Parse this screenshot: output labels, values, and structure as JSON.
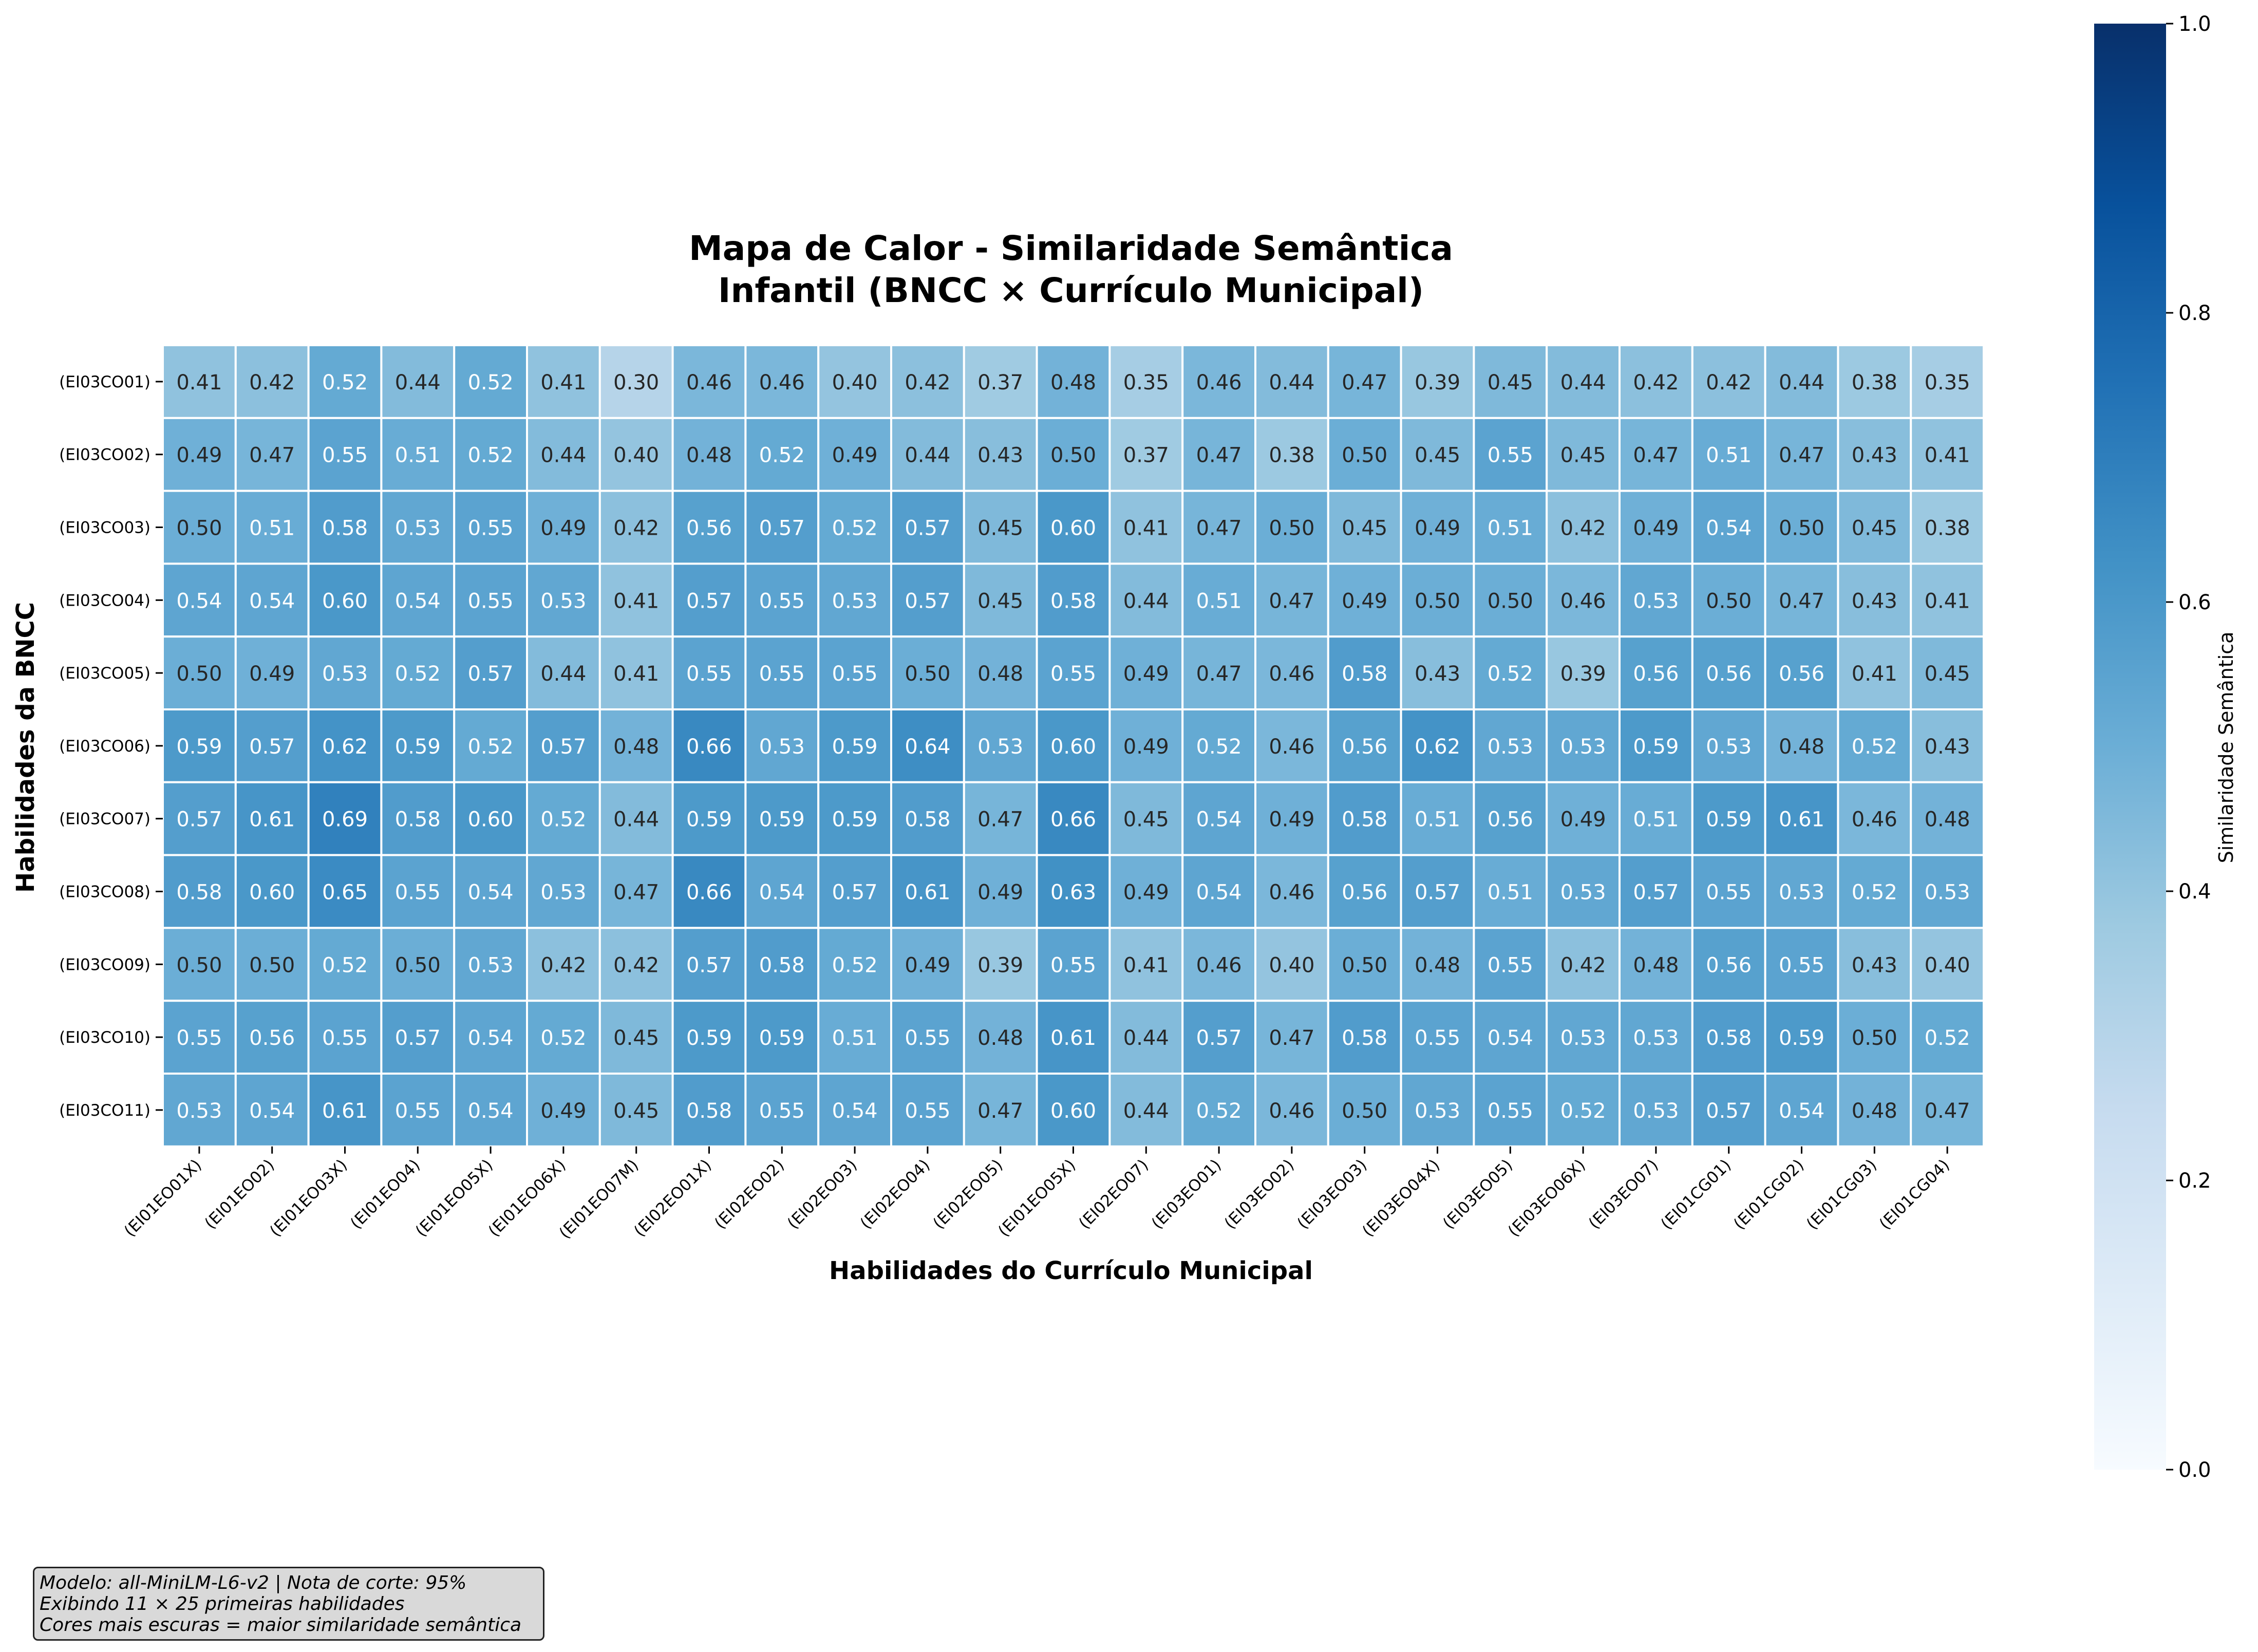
{
  "chart_data": {
    "type": "heatmap",
    "title": "Mapa de Calor - Similaridade Semântica",
    "subtitle": "Infantil (BNCC × Currículo Municipal)",
    "xlabel": "Habilidades do Currículo Municipal",
    "ylabel": "Habilidades da BNCC",
    "colorbar_label": "Similaridade Semântica",
    "colorbar_range": [
      0,
      1
    ],
    "colorbar_ticks": [
      "0.0",
      "0.2",
      "0.4",
      "0.6",
      "0.8",
      "1.0"
    ],
    "colormap": "Blues",
    "colors": {
      "low": "#f7fbff",
      "high": "#08306b",
      "cell_border": "#ffffff"
    },
    "columns": [
      "(EI01EO01X)",
      "(EI01EO02)",
      "(EI01EO03X)",
      "(EI01EO04)",
      "(EI01EO05X)",
      "(EI01EO06X)",
      "(EI01EO07M)",
      "(EI02EO01X)",
      "(EI02EO02)",
      "(EI02EO03)",
      "(EI02EO04)",
      "(EI02EO05)",
      "(EI01EO05X)",
      "(EI02EO07)",
      "(EI03EO01)",
      "(EI03EO02)",
      "(EI03EO03)",
      "(EI03EO04X)",
      "(EI03EO05)",
      "(EI03EO06X)",
      "(EI03EO07)",
      "(EI01CG01)",
      "(EI01CG02)",
      "(EI01CG03)",
      "(EI01CG04)"
    ],
    "rows": [
      "(EI03CO01)",
      "(EI03CO02)",
      "(EI03CO03)",
      "(EI03CO04)",
      "(EI03CO05)",
      "(EI03CO06)",
      "(EI03CO07)",
      "(EI03CO08)",
      "(EI03CO09)",
      "(EI03CO10)",
      "(EI03CO11)"
    ],
    "values": [
      [
        0.41,
        0.42,
        0.52,
        0.44,
        0.52,
        0.41,
        0.3,
        0.46,
        0.46,
        0.4,
        0.42,
        0.37,
        0.48,
        0.35,
        0.46,
        0.44,
        0.47,
        0.39,
        0.45,
        0.44,
        0.42,
        0.42,
        0.44,
        0.38,
        0.35
      ],
      [
        0.49,
        0.47,
        0.55,
        0.51,
        0.52,
        0.44,
        0.4,
        0.48,
        0.52,
        0.49,
        0.44,
        0.43,
        0.5,
        0.37,
        0.47,
        0.38,
        0.5,
        0.45,
        0.55,
        0.45,
        0.47,
        0.51,
        0.47,
        0.43,
        0.41
      ],
      [
        0.5,
        0.51,
        0.58,
        0.53,
        0.55,
        0.49,
        0.42,
        0.56,
        0.57,
        0.52,
        0.57,
        0.45,
        0.6,
        0.41,
        0.47,
        0.5,
        0.45,
        0.49,
        0.51,
        0.42,
        0.49,
        0.54,
        0.5,
        0.45,
        0.38
      ],
      [
        0.54,
        0.54,
        0.6,
        0.54,
        0.55,
        0.53,
        0.41,
        0.57,
        0.55,
        0.53,
        0.57,
        0.45,
        0.58,
        0.44,
        0.51,
        0.47,
        0.49,
        0.5,
        0.5,
        0.46,
        0.53,
        0.5,
        0.47,
        0.43,
        0.41
      ],
      [
        0.5,
        0.49,
        0.53,
        0.52,
        0.57,
        0.44,
        0.41,
        0.55,
        0.55,
        0.55,
        0.5,
        0.48,
        0.55,
        0.49,
        0.47,
        0.46,
        0.58,
        0.43,
        0.52,
        0.39,
        0.56,
        0.56,
        0.56,
        0.41,
        0.45
      ],
      [
        0.59,
        0.57,
        0.62,
        0.59,
        0.52,
        0.57,
        0.48,
        0.66,
        0.53,
        0.59,
        0.64,
        0.53,
        0.6,
        0.49,
        0.52,
        0.46,
        0.56,
        0.62,
        0.53,
        0.53,
        0.59,
        0.53,
        0.48,
        0.52,
        0.43
      ],
      [
        0.57,
        0.61,
        0.69,
        0.58,
        0.6,
        0.52,
        0.44,
        0.59,
        0.59,
        0.59,
        0.58,
        0.47,
        0.66,
        0.45,
        0.54,
        0.49,
        0.58,
        0.51,
        0.56,
        0.49,
        0.51,
        0.59,
        0.61,
        0.46,
        0.48
      ],
      [
        0.58,
        0.6,
        0.65,
        0.55,
        0.54,
        0.53,
        0.47,
        0.66,
        0.54,
        0.57,
        0.61,
        0.49,
        0.63,
        0.49,
        0.54,
        0.46,
        0.56,
        0.57,
        0.51,
        0.53,
        0.57,
        0.55,
        0.53,
        0.52,
        0.53
      ],
      [
        0.5,
        0.5,
        0.52,
        0.5,
        0.53,
        0.42,
        0.42,
        0.57,
        0.58,
        0.52,
        0.49,
        0.39,
        0.55,
        0.41,
        0.46,
        0.4,
        0.5,
        0.48,
        0.55,
        0.42,
        0.48,
        0.56,
        0.55,
        0.43,
        0.4
      ],
      [
        0.55,
        0.56,
        0.55,
        0.57,
        0.54,
        0.52,
        0.45,
        0.59,
        0.59,
        0.51,
        0.55,
        0.48,
        0.61,
        0.44,
        0.57,
        0.47,
        0.58,
        0.55,
        0.54,
        0.53,
        0.53,
        0.58,
        0.59,
        0.5,
        0.52
      ],
      [
        0.53,
        0.54,
        0.61,
        0.55,
        0.54,
        0.49,
        0.45,
        0.58,
        0.55,
        0.54,
        0.55,
        0.47,
        0.6,
        0.44,
        0.52,
        0.46,
        0.5,
        0.53,
        0.55,
        0.52,
        0.53,
        0.57,
        0.54,
        0.48,
        0.47
      ]
    ]
  },
  "note": {
    "line1": "Modelo: all-MiniLM-L6-v2 | Nota de corte: 95%",
    "line2": "Exibindo 11 × 25 primeiras habilidades",
    "line3": "Cores mais escuras = maior similaridade semântica"
  }
}
